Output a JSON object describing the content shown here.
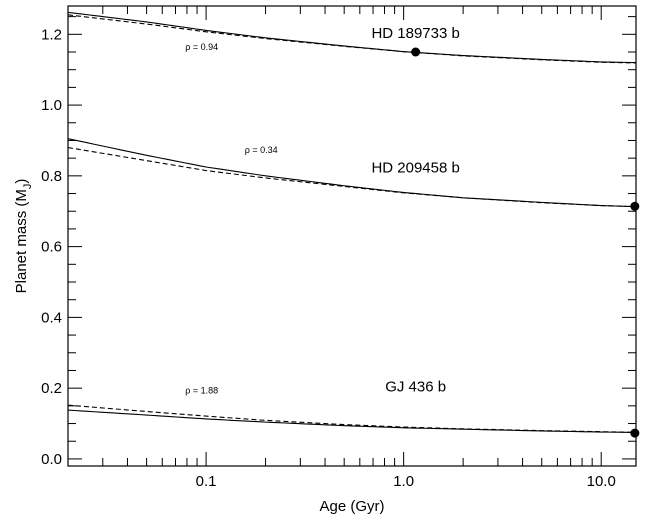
{
  "chart_data": {
    "type": "line",
    "title": "",
    "xlabel": "Age (Gyr)",
    "ylabel": "Planet mass (M",
    "ylabel_sub": "J",
    "xscale": "log",
    "xlim": [
      0.02,
      15
    ],
    "ylim": [
      -0.02,
      1.28
    ],
    "xticks": [
      {
        "value": 0.1,
        "label": "0.1"
      },
      {
        "value": 1,
        "label": "1.0"
      },
      {
        "value": 10,
        "label": "10.0"
      }
    ],
    "yticks": [
      {
        "value": 0.0,
        "label": "0.0"
      },
      {
        "value": 0.2,
        "label": "0.2"
      },
      {
        "value": 0.4,
        "label": "0.4"
      },
      {
        "value": 0.6,
        "label": "0.6"
      },
      {
        "value": 0.8,
        "label": "0.8"
      },
      {
        "value": 1.0,
        "label": "1.0"
      },
      {
        "value": 1.2,
        "label": "1.2"
      }
    ],
    "grid": false,
    "planets": [
      {
        "name": "HD 189733 b",
        "rho_label": "ρ = 0.94",
        "solid": {
          "x": [
            0.02,
            0.05,
            0.1,
            0.2,
            0.5,
            1,
            2,
            5,
            10,
            15
          ],
          "y": [
            1.262,
            1.235,
            1.211,
            1.19,
            1.167,
            1.151,
            1.14,
            1.129,
            1.122,
            1.12
          ]
        },
        "dashed": {
          "x": [
            0.02,
            0.05,
            0.1,
            0.2,
            0.5,
            1,
            2,
            5,
            10,
            15
          ],
          "y": [
            1.255,
            1.229,
            1.207,
            1.188,
            1.166,
            1.151,
            1.139,
            1.128,
            1.121,
            1.119
          ]
        },
        "point": {
          "x": 1.15,
          "y": 1.15
        }
      },
      {
        "name": "HD 209458 b",
        "rho_label": "ρ = 0.34",
        "solid": {
          "x": [
            0.02,
            0.05,
            0.1,
            0.2,
            0.5,
            1,
            2,
            5,
            10,
            15
          ],
          "y": [
            0.905,
            0.858,
            0.825,
            0.8,
            0.772,
            0.753,
            0.738,
            0.725,
            0.716,
            0.713
          ]
        },
        "dashed": {
          "x": [
            0.02,
            0.05,
            0.1,
            0.2,
            0.5,
            1,
            2,
            5,
            10,
            15
          ],
          "y": [
            0.88,
            0.843,
            0.815,
            0.794,
            0.77,
            0.752,
            0.738,
            0.724,
            0.716,
            0.713
          ]
        },
        "point": {
          "x": 14.8,
          "y": 0.714
        }
      },
      {
        "name": "GJ 436 b",
        "rho_label": "ρ = 1.88",
        "solid": {
          "x": [
            0.02,
            0.05,
            0.1,
            0.2,
            0.5,
            1,
            2,
            5,
            10,
            15
          ],
          "y": [
            0.138,
            0.124,
            0.113,
            0.104,
            0.094,
            0.088,
            0.084,
            0.079,
            0.076,
            0.075
          ]
        },
        "dashed": {
          "x": [
            0.02,
            0.05,
            0.1,
            0.2,
            0.5,
            1,
            2,
            5,
            10,
            15
          ],
          "y": [
            0.152,
            0.134,
            0.121,
            0.109,
            0.097,
            0.09,
            0.085,
            0.08,
            0.077,
            0.075
          ]
        },
        "point": {
          "x": 14.8,
          "y": 0.073
        }
      }
    ]
  }
}
